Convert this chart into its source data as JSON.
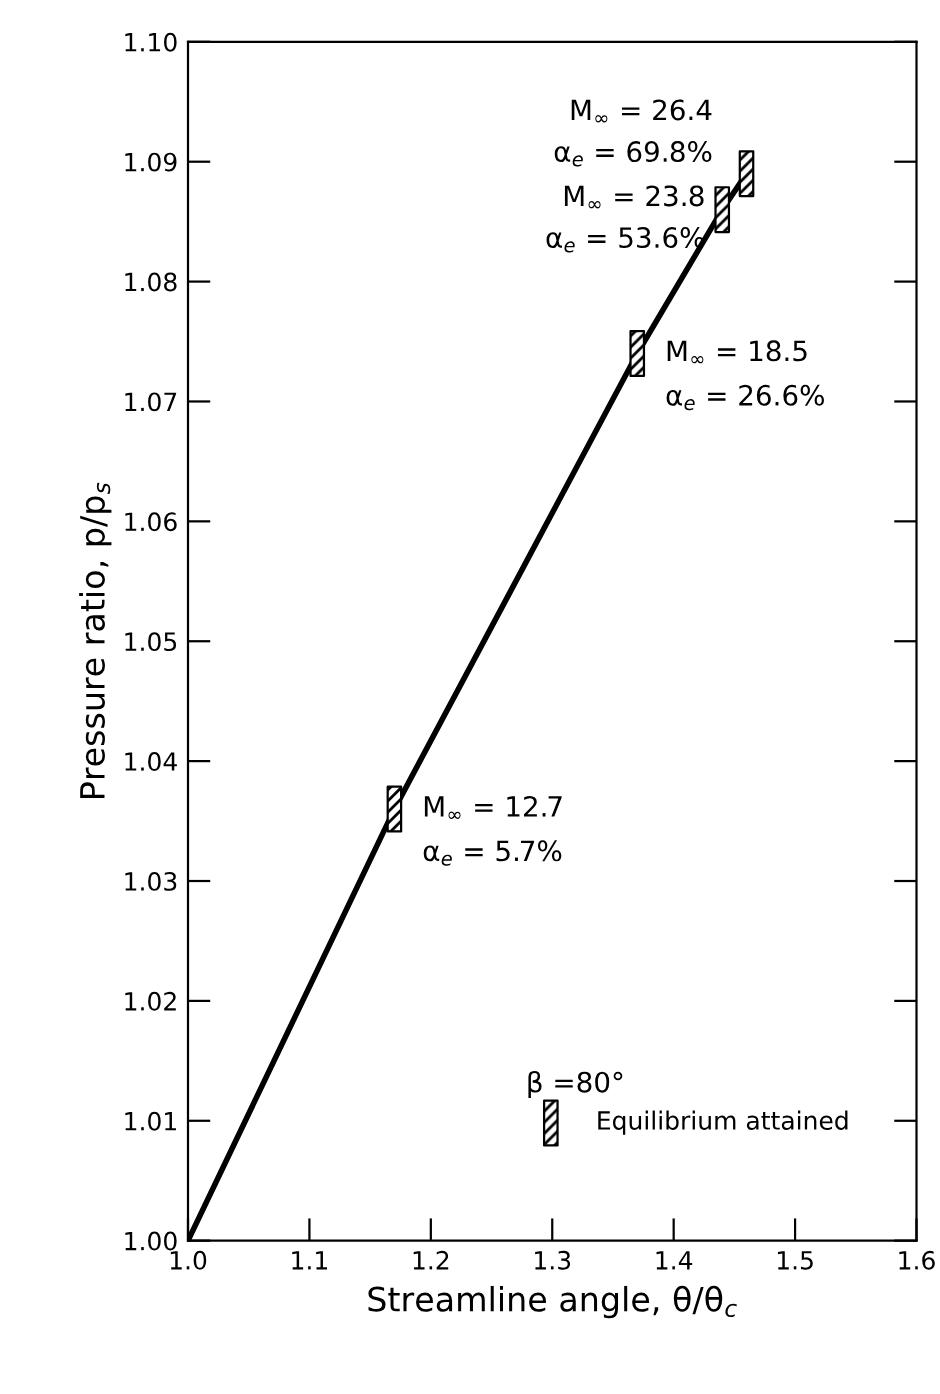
{
  "chart_data": {
    "type": "line",
    "xlabel": "Streamline angle, θ/θ$_{c}$",
    "ylabel": "Pressure ratio, p/p$_{s}$",
    "xlim": [
      1.0,
      1.6
    ],
    "xticks": [
      {
        "value": 1.0,
        "label": "1.0"
      },
      1.1,
      1.2,
      1.3,
      1.4,
      1.5,
      1.6
    ],
    "ylim": [
      1.0,
      1.1
    ],
    "yticks": [
      {
        "value": 1.0,
        "label": "1.00"
      },
      {
        "value": 1.01,
        "label": "1.01"
      },
      {
        "value": 1.02,
        "label": "1.02"
      },
      {
        "value": 1.03,
        "label": "1.03"
      },
      {
        "value": 1.04,
        "label": "1.04"
      },
      {
        "value": 1.05,
        "label": "1.05"
      },
      {
        "value": 1.06,
        "label": "1.06"
      },
      {
        "value": 1.07,
        "label": "1.07"
      },
      {
        "value": 1.08,
        "label": "1.08"
      },
      {
        "value": 1.09,
        "label": "1.09"
      },
      {
        "value": 1.1,
        "label": "1.10"
      }
    ],
    "grid": false,
    "legend": "bottom right",
    "legend_title": "β =80°",
    "series": [
      {
        "color": "#000000",
        "x": [
          1.0,
          1.17,
          1.37,
          1.44,
          1.46
        ],
        "values": [
          1.0,
          1.036,
          1.074,
          1.086,
          1.089
        ],
        "marker": "none",
        "line_style": "solid"
      },
      {
        "type": "scatter",
        "name": "Equilibrium attained",
        "color": "#000000",
        "x": [
          1.17,
          1.37,
          1.44,
          1.46
        ],
        "values": [
          1.036,
          1.074,
          1.086,
          1.089
        ],
        "marker": "square"
      }
    ],
    "annotations": [
      {
        "text": "M$_{∞}$ = 26.4",
        "x": 1.46,
        "y": 1.089
      },
      {
        "text": "α$_{e}$ = 69.8%",
        "x": 1.46,
        "y": 1.089
      },
      {
        "text": "M$_{∞}$ = 23.8",
        "x": 1.44,
        "y": 1.086
      },
      {
        "text": "α$_{e}$ = 53.6%",
        "x": 1.44,
        "y": 1.086
      },
      {
        "text": "M$_{∞}$ = 18.5",
        "x": 1.37,
        "y": 1.074
      },
      {
        "text": "α$_{e}$ = 26.6%",
        "x": 1.37,
        "y": 1.074
      },
      {
        "text": "M$_{∞}$ = 12.7",
        "x": 1.17,
        "y": 1.036
      },
      {
        "text": "α$_{e}$ = 5.7%",
        "x": 1.17,
        "y": 1.036
      }
    ]
  }
}
